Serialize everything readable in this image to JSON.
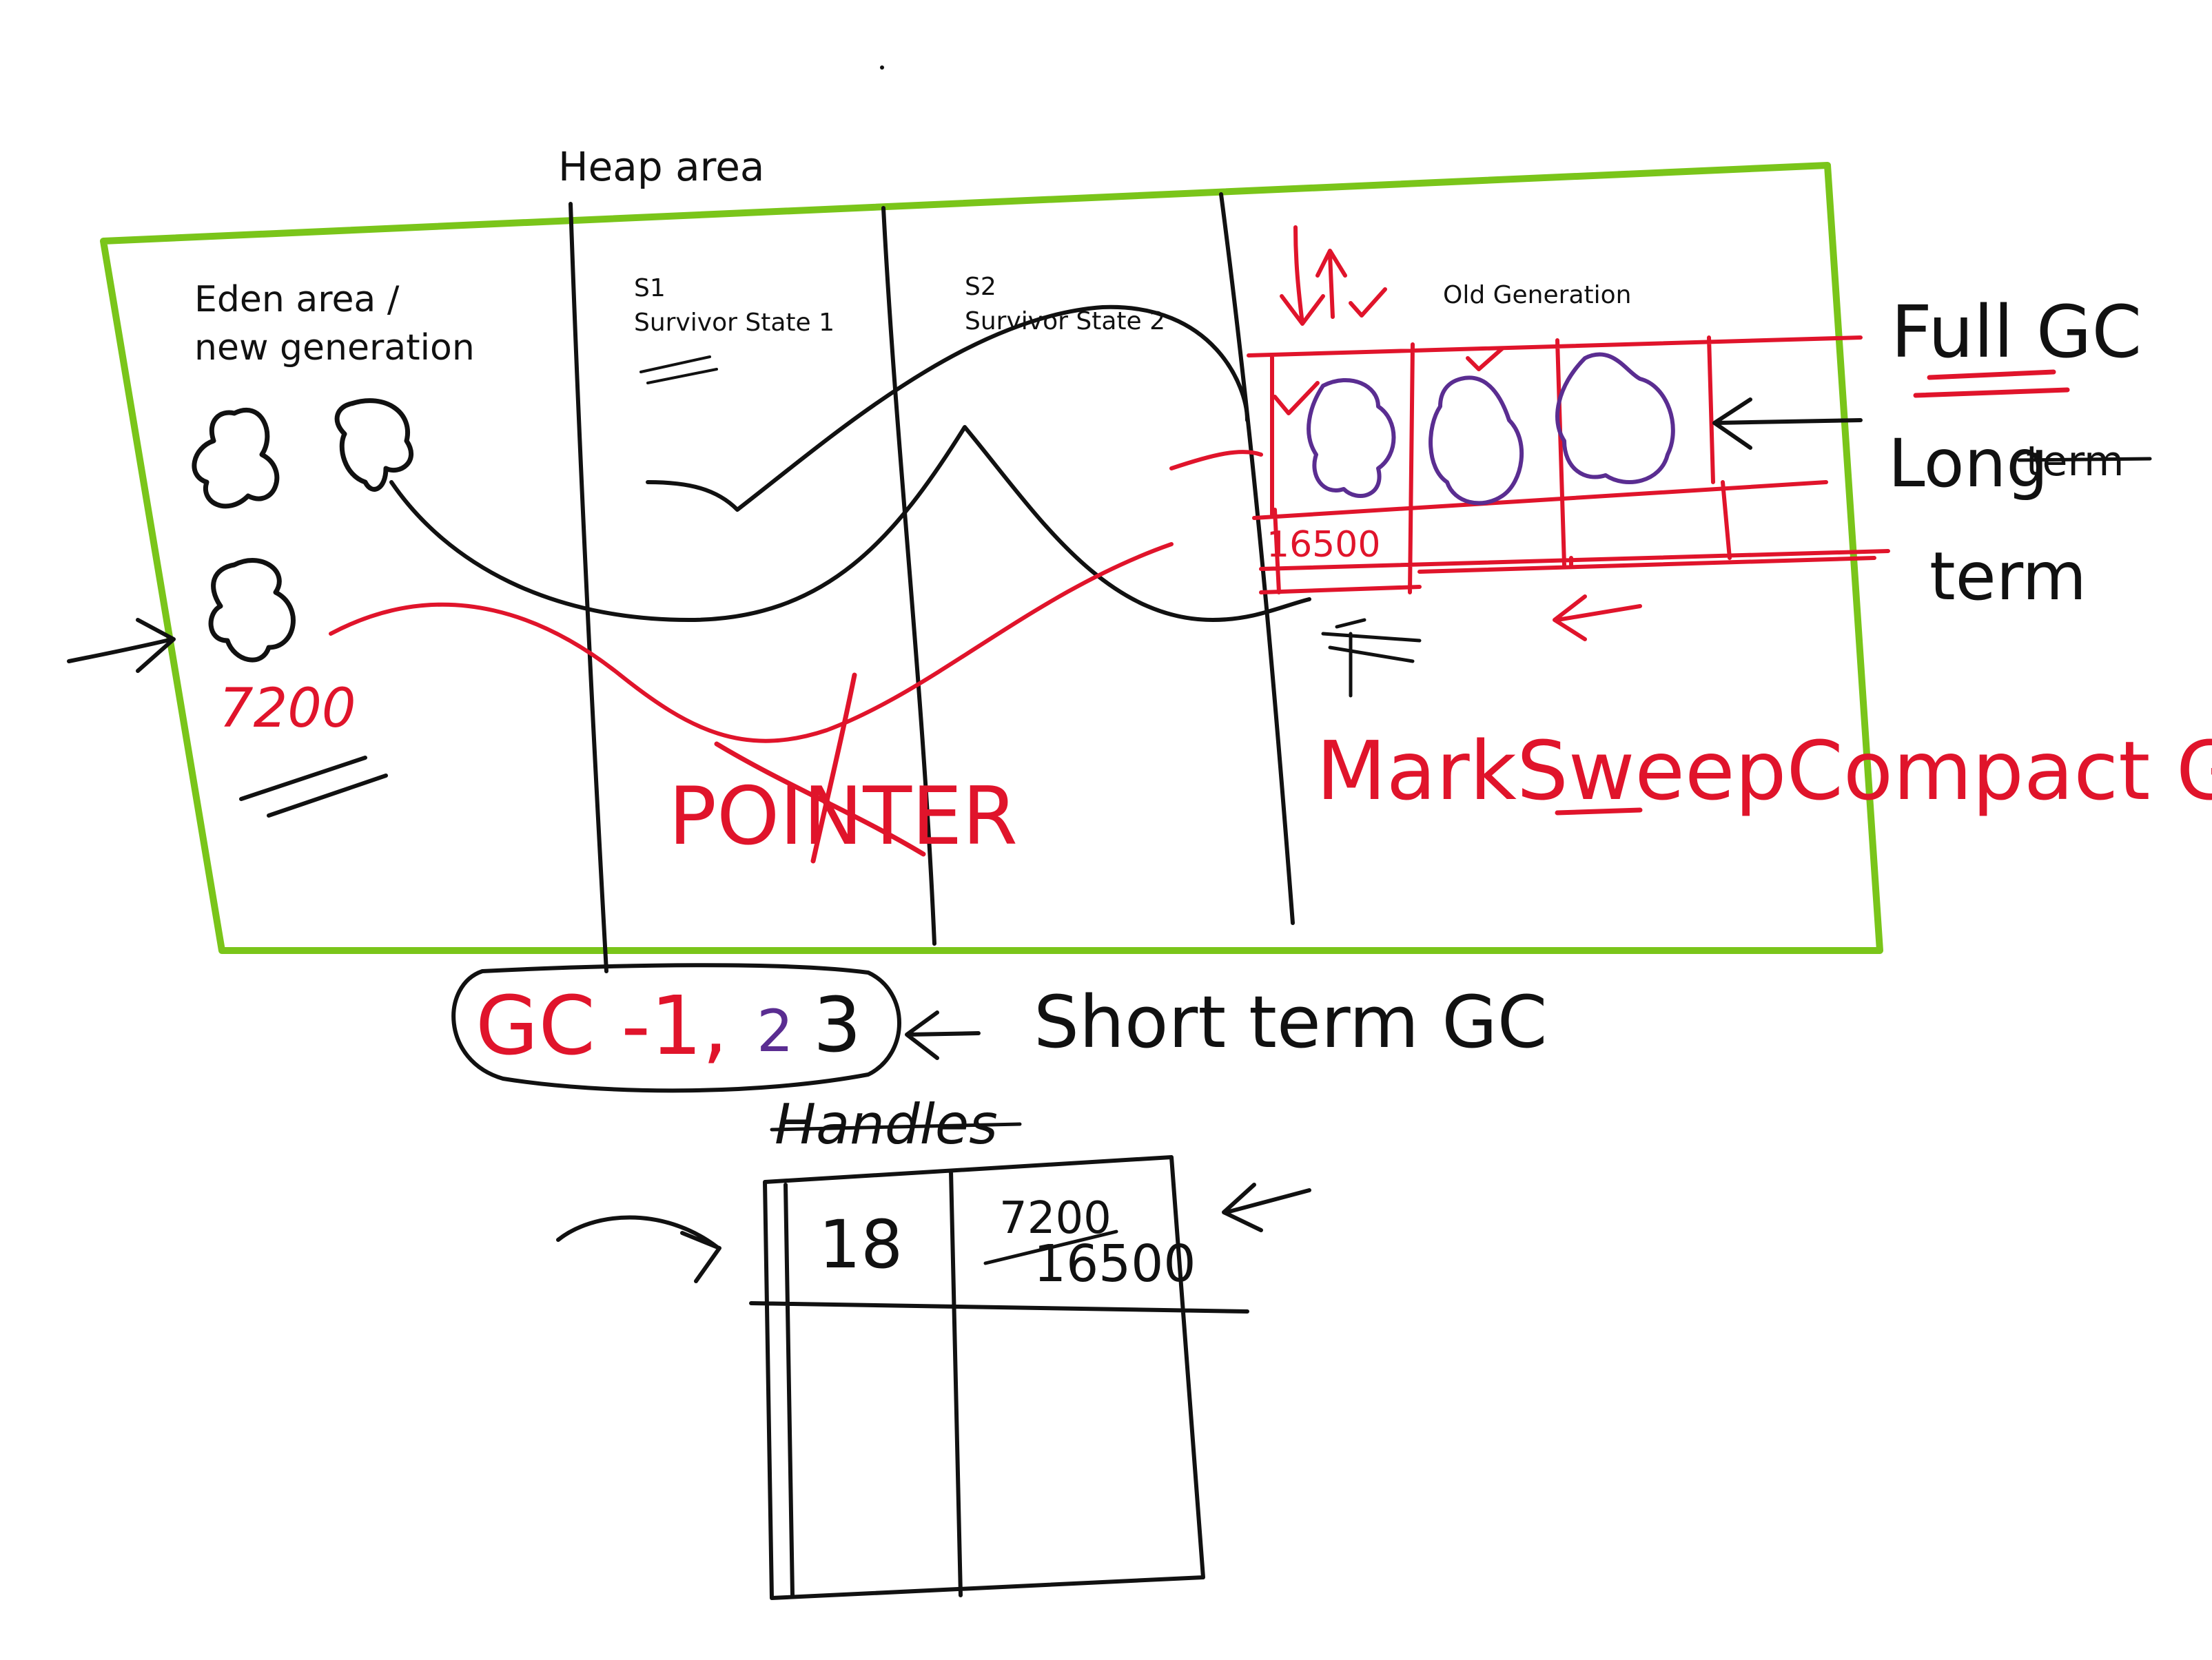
{
  "labels": {
    "heap_area": "Heap area",
    "eden_line1": "Eden area /",
    "eden_line2": "new generation",
    "s1_title": "S1",
    "s1_subtitle": "Survivor State 1",
    "s2_title": "S2",
    "s2_subtitle": "Survivor State 2",
    "old_generation": "Old Generation",
    "eden_value": "7200",
    "old_value": "16500",
    "pointer": "POINTER",
    "mark_sweep": "MarkSweepCompact GC",
    "full_gc": "Full GC",
    "long_term_line1": "Long",
    "long_term_struck": "term",
    "long_term_line2": "term",
    "gc_prefix": "GC -1,",
    "gc_two": "2",
    "gc_three": "3",
    "short_term_gc": "Short term GC",
    "handles": "Handles",
    "handle_id": "18",
    "handle_old_value": "7200",
    "handle_new_value": "16500"
  },
  "colors": {
    "heap_border": "#7ac51a",
    "ink": "#111111",
    "red_ink": "#e0142b",
    "purple_ink": "#5a2d91"
  },
  "icons": {
    "objects": "blob-shape",
    "pointers": "arrow"
  }
}
